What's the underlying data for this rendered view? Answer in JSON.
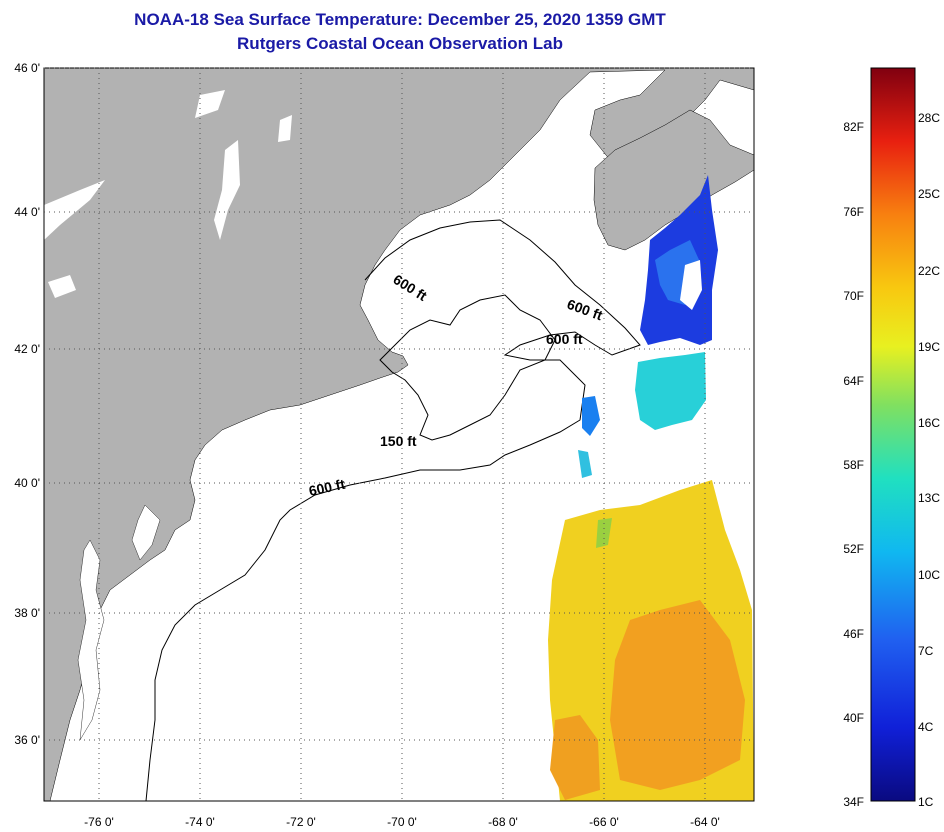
{
  "title_line1": "NOAA-18 Sea Surface Temperature:  December 25, 2020 1359 GMT",
  "title_line2": "Rutgers Coastal Ocean Observation Lab",
  "map": {
    "lat_labels": [
      "46 0'",
      "44 0'",
      "42 0'",
      "40 0'",
      "38 0'",
      "36 0'"
    ],
    "lon_labels": [
      "-76 0'",
      "-74 0'",
      "-72 0'",
      "-70 0'",
      "-68 0'",
      "-66 0'",
      "-64 0'"
    ],
    "contour_labels": [
      "600 ft",
      "600 ft",
      "600 ft",
      "150 ft",
      "600 ft"
    ],
    "colors": {
      "land": "#b2b2b2",
      "water": "#ffffff",
      "grid": "#555555"
    }
  },
  "colorbar": {
    "fahrenheit_labels": [
      "82F",
      "76F",
      "70F",
      "64F",
      "58F",
      "52F",
      "46F",
      "40F",
      "34F"
    ],
    "celsius_labels": [
      "28C",
      "25C",
      "22C",
      "19C",
      "16C",
      "13C",
      "10C",
      "7C",
      "4C",
      "1C"
    ]
  }
}
